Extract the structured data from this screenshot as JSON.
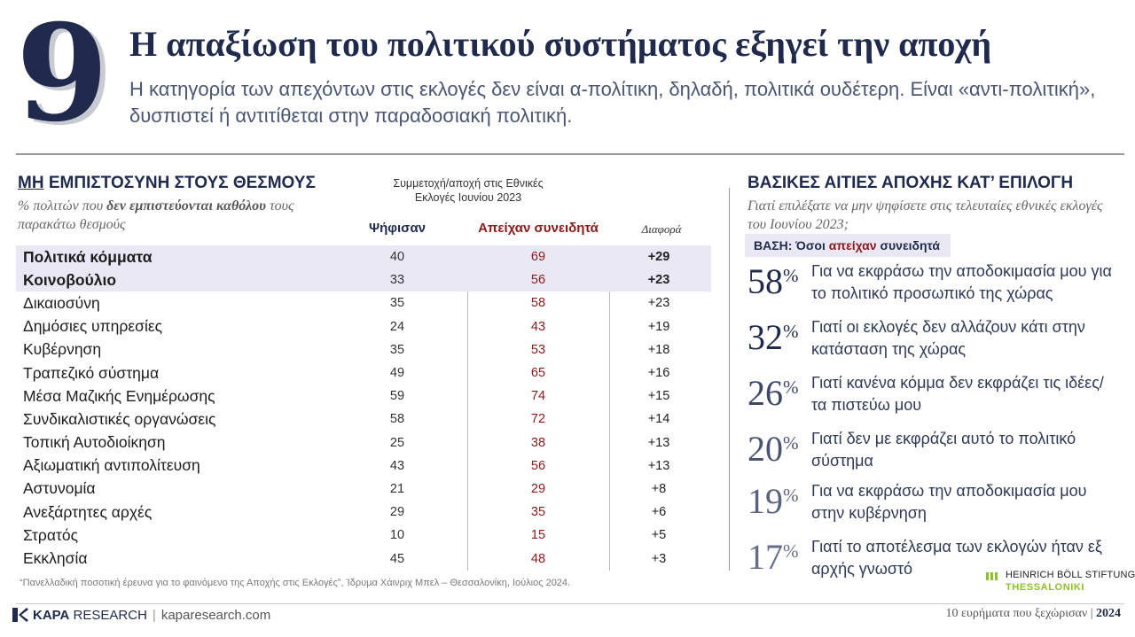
{
  "slide_number": "9",
  "title": "Η απαξίωση του πολιτικού συστήματος εξηγεί την αποχή",
  "subtitle": "Η κατηγορία των απεχόντων στις εκλογές δεν είναι α-πολίτικη, δηλαδή, πολιτικά ουδέτερη. Είναι «αντι-πολιτική», δυσπιστεί ή αντιτίθεται στην παραδοσιακή πολιτική.",
  "left": {
    "heading_underlined": "ΜΗ",
    "heading_rest": " ΕΜΠΙΣΤΟΣΥΝΗ ΣΤΟΥΣ ΘΕΣΜΟΥΣ",
    "sub_pre": "% πολιτών που ",
    "sub_bold": "δεν εμπιστεύονται καθόλου",
    "sub_post": " τους παρακάτω θεσμούς",
    "column_group": "Συμμετοχή/αποχή στις Εθνικές Εκλογές Ιουνίου 2023",
    "col_voted": "Ψήφισαν",
    "col_abstained": "Απείχαν συνειδητά",
    "col_diff": "Διαφορά",
    "rows": [
      {
        "name": "Πολιτικά κόμματα",
        "voted": "40",
        "abstained": "69",
        "diff": "+29"
      },
      {
        "name": "Κοινοβούλιο",
        "voted": "33",
        "abstained": "56",
        "diff": "+23"
      },
      {
        "name": "Δικαιοσύνη",
        "voted": "35",
        "abstained": "58",
        "diff": "+23"
      },
      {
        "name": "Δημόσιες υπηρεσίες",
        "voted": "24",
        "abstained": "43",
        "diff": "+19"
      },
      {
        "name": "Κυβέρνηση",
        "voted": "35",
        "abstained": "53",
        "diff": "+18"
      },
      {
        "name": "Τραπεζικό σύστημα",
        "voted": "49",
        "abstained": "65",
        "diff": "+16"
      },
      {
        "name": "Μέσα Μαζικής Ενημέρωσης",
        "voted": "59",
        "abstained": "74",
        "diff": "+15"
      },
      {
        "name": "Συνδικαλιστικές οργανώσεις",
        "voted": "58",
        "abstained": "72",
        "diff": "+14"
      },
      {
        "name": "Τοπική Αυτοδιοίκηση",
        "voted": "25",
        "abstained": "38",
        "diff": "+13"
      },
      {
        "name": "Αξιωματική αντιπολίτευση",
        "voted": "43",
        "abstained": "56",
        "diff": "+13"
      },
      {
        "name": "Αστυνομία",
        "voted": "21",
        "abstained": "29",
        "diff": "+8"
      },
      {
        "name": "Ανεξάρτητες αρχές",
        "voted": "29",
        "abstained": "35",
        "diff": "+6"
      },
      {
        "name": "Στρατός",
        "voted": "10",
        "abstained": "15",
        "diff": "+5"
      },
      {
        "name": "Εκκλησία",
        "voted": "45",
        "abstained": "48",
        "diff": "+3"
      }
    ],
    "source": "“Πανελλαδική ποσοτική έρευνα για το φαινόμενο της Αποχής στις Εκλογές”, Ίδρυμα Χάινριχ Μπελ – Θεσσαλονίκη, Ιούλιος 2024."
  },
  "right": {
    "heading": "ΒΑΣΙΚΕΣ ΑΙΤΙΕΣ ΑΠΟΧΗΣ ΚΑΤ’ ΕΠΙΛΟΓΗ",
    "question": "Γιατί επιλέξατε να μην ψηφίσετε στις τελευταίες εθνικές εκλογές του Ιουνίου 2023;",
    "base_pre": "ΒΑΣΗ: Όσοι ",
    "base_red": "απείχαν",
    "base_post": " συνειδητά",
    "reasons": [
      {
        "pct": "58",
        "sym": "%",
        "text": "Για να εκφράσω την αποδοκιμασία μου για το πολιτικό προσωπικό της χώρας",
        "color": "#1f2a4c"
      },
      {
        "pct": "32",
        "sym": "%",
        "text": "Γιατί οι εκλογές δεν αλλάζουν κάτι στην κατάσταση της χώρας",
        "color": "#1f2a4c"
      },
      {
        "pct": "26",
        "sym": "%",
        "text": "Γιατί κανένα κόμμα δεν εκφράζει τις ιδέες/ τα πιστεύω μου",
        "color": "#3c4666"
      },
      {
        "pct": "20",
        "sym": "%",
        "text": "Γιατί δεν με εκφράζει αυτό το πολιτικό σύστημα",
        "color": "#4a5470"
      },
      {
        "pct": "19",
        "sym": "%",
        "text": "Για να εκφράσω την αποδοκιμασία μου στην κυβέρνηση",
        "color": "#5a637d"
      },
      {
        "pct": "17",
        "sym": "%",
        "text": "Γιατί το αποτέλεσμα των εκλογών ήταν εξ αρχής γνωστό",
        "color": "#646d86"
      }
    ]
  },
  "footer": {
    "kapa_bold": "KAPA",
    "kapa_rest": " RESEARCH",
    "separator": "|",
    "site": "kaparesearch.com",
    "hbs_line1": "HEINRICH BÖLL STIFTUNG",
    "hbs_line2": "THESSALONIKI",
    "right_text": "10 ευρήματα που ξεχώρισαν",
    "right_sep": " | ",
    "right_year": "2024"
  },
  "colors": {
    "navy": "#1f2a4c",
    "dark_red": "#8b1a1a",
    "highlight_row": "#ebe8f5",
    "hbs_green": "#8fbf2a"
  }
}
